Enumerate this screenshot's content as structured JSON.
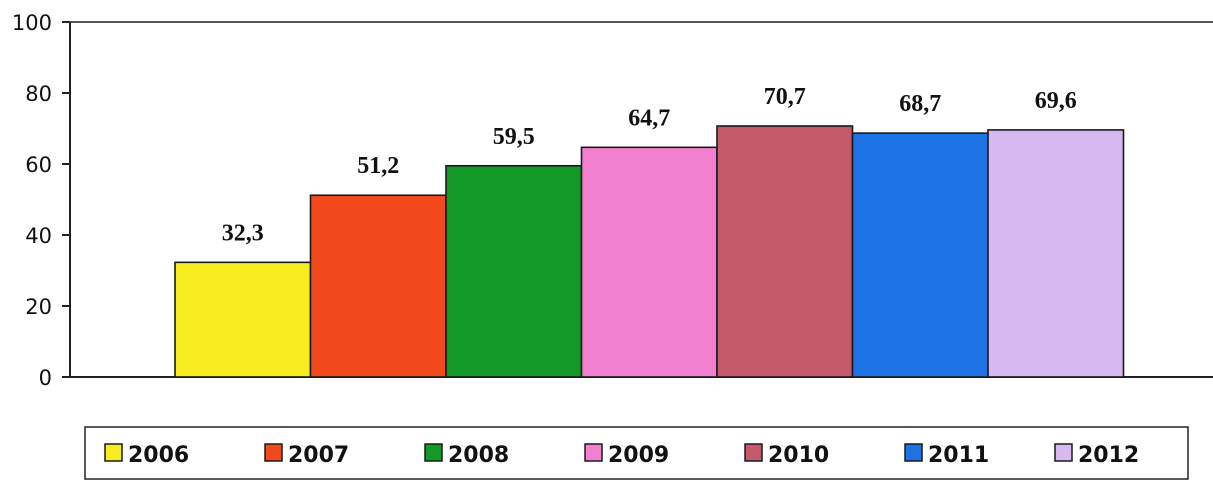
{
  "chart_data": {
    "type": "bar",
    "categories": [
      "2006",
      "2007",
      "2008",
      "2009",
      "2010",
      "2011",
      "2012"
    ],
    "values": [
      32.3,
      51.2,
      59.5,
      64.7,
      70.7,
      68.7,
      69.6
    ],
    "value_labels": [
      "32,3",
      "51,2",
      "59,5",
      "64,7",
      "70,7",
      "68,7",
      "69,6"
    ],
    "colors": [
      "#f7ec1e",
      "#f24a1d",
      "#139a26",
      "#f27fcf",
      "#c4596c",
      "#1d73e3",
      "#d7b8f0"
    ],
    "yticks": [
      0,
      20,
      40,
      60,
      80,
      100
    ],
    "ylim": [
      0,
      100
    ],
    "grid": false,
    "legend": "bottom"
  }
}
